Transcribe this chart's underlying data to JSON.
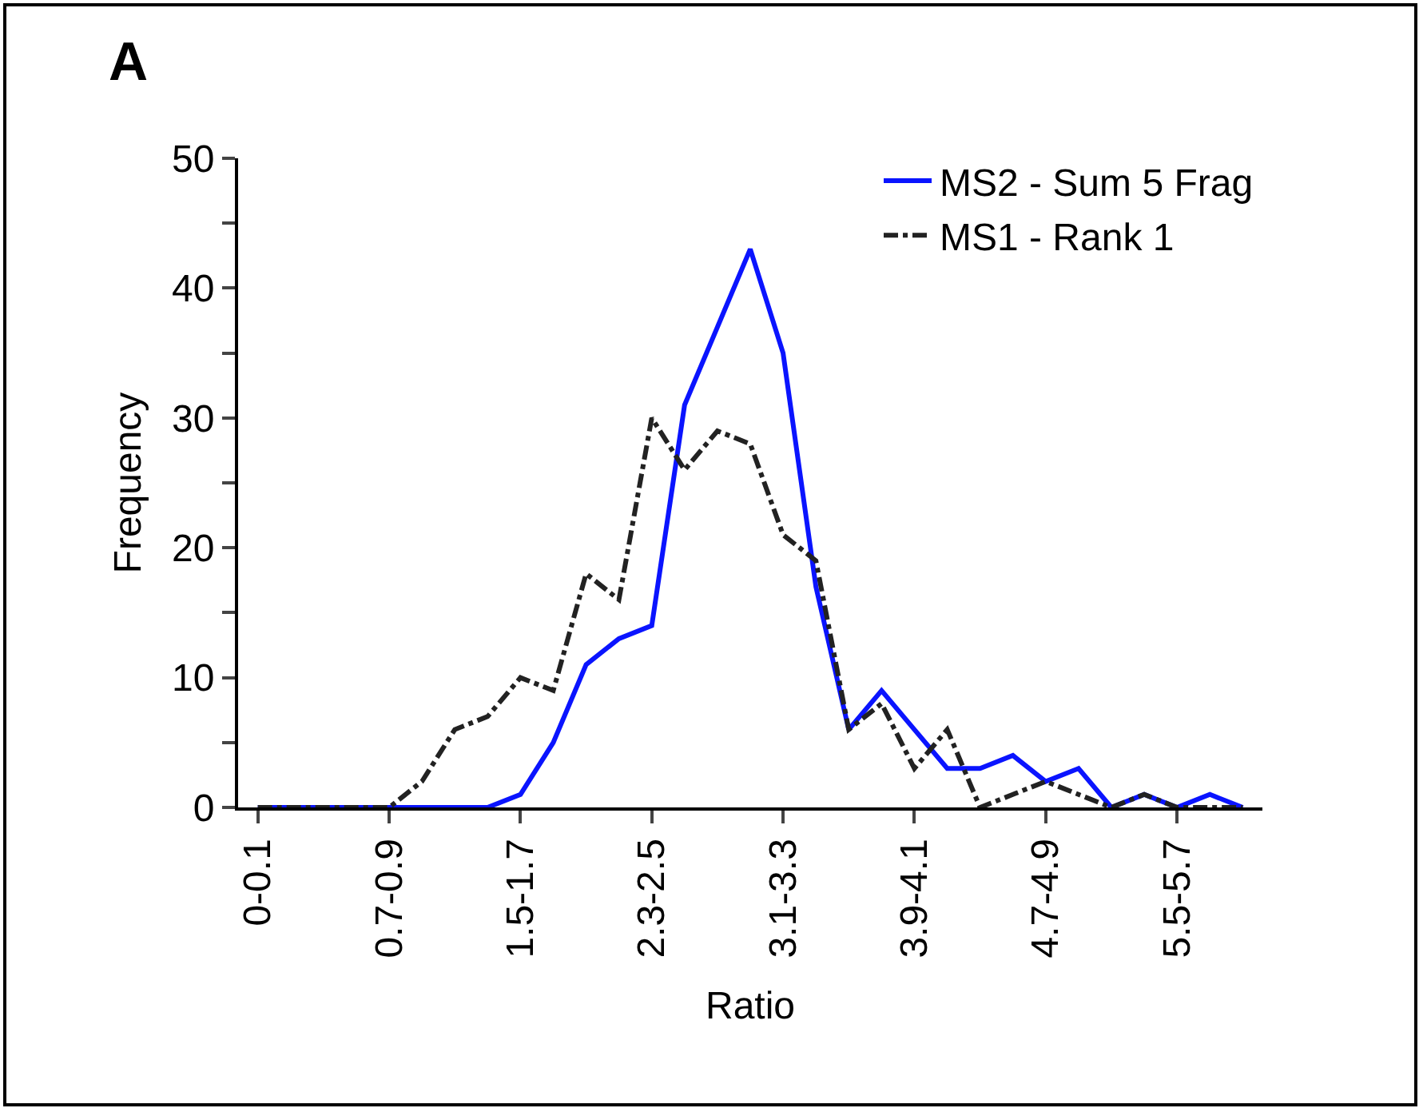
{
  "chart_data": {
    "type": "line",
    "xlabel": "Ratio",
    "ylabel": "Frequency",
    "annotations": [
      "A"
    ],
    "categories": [
      "0-0.1",
      null,
      null,
      null,
      "0.7-0.9",
      null,
      null,
      null,
      "1.5-1.7",
      null,
      null,
      null,
      "2.3-2.5",
      null,
      null,
      null,
      "3.1-3.3",
      null,
      null,
      null,
      "3.9-4.1",
      null,
      null,
      null,
      "4.7-4.9",
      null,
      null,
      null,
      "5.5-5.7",
      null,
      null
    ],
    "series": [
      {
        "name": "MS2 - Sum 5 Frag",
        "color": "#0a14ff",
        "line_style": "solid",
        "values": [
          0,
          0,
          0,
          0,
          0,
          0,
          0,
          0,
          1,
          5,
          11,
          13,
          14,
          31,
          37,
          43,
          35,
          17,
          6,
          9,
          6,
          3,
          3,
          4,
          2,
          3,
          0,
          1,
          0,
          1,
          0
        ]
      },
      {
        "name": "MS1 - Rank 1",
        "color": "#222222",
        "line_style": "dashed",
        "values": [
          0,
          0,
          0,
          0,
          0,
          2,
          6,
          7,
          10,
          9,
          18,
          16,
          30,
          26,
          29,
          28,
          21,
          19,
          6,
          8,
          3,
          6,
          0,
          1,
          2,
          1,
          0,
          1,
          0,
          0,
          0
        ]
      }
    ],
    "ylim": [
      0,
      50
    ],
    "yticks": [
      0,
      {
        "value": 5,
        "label": null
      },
      10,
      {
        "value": 15,
        "label": null
      },
      20,
      {
        "value": 25,
        "label": null
      },
      30,
      {
        "value": 35,
        "label": null
      },
      40,
      {
        "value": 45,
        "label": null
      },
      50
    ],
    "grid": false,
    "legend": "top right",
    "marker": "none"
  }
}
